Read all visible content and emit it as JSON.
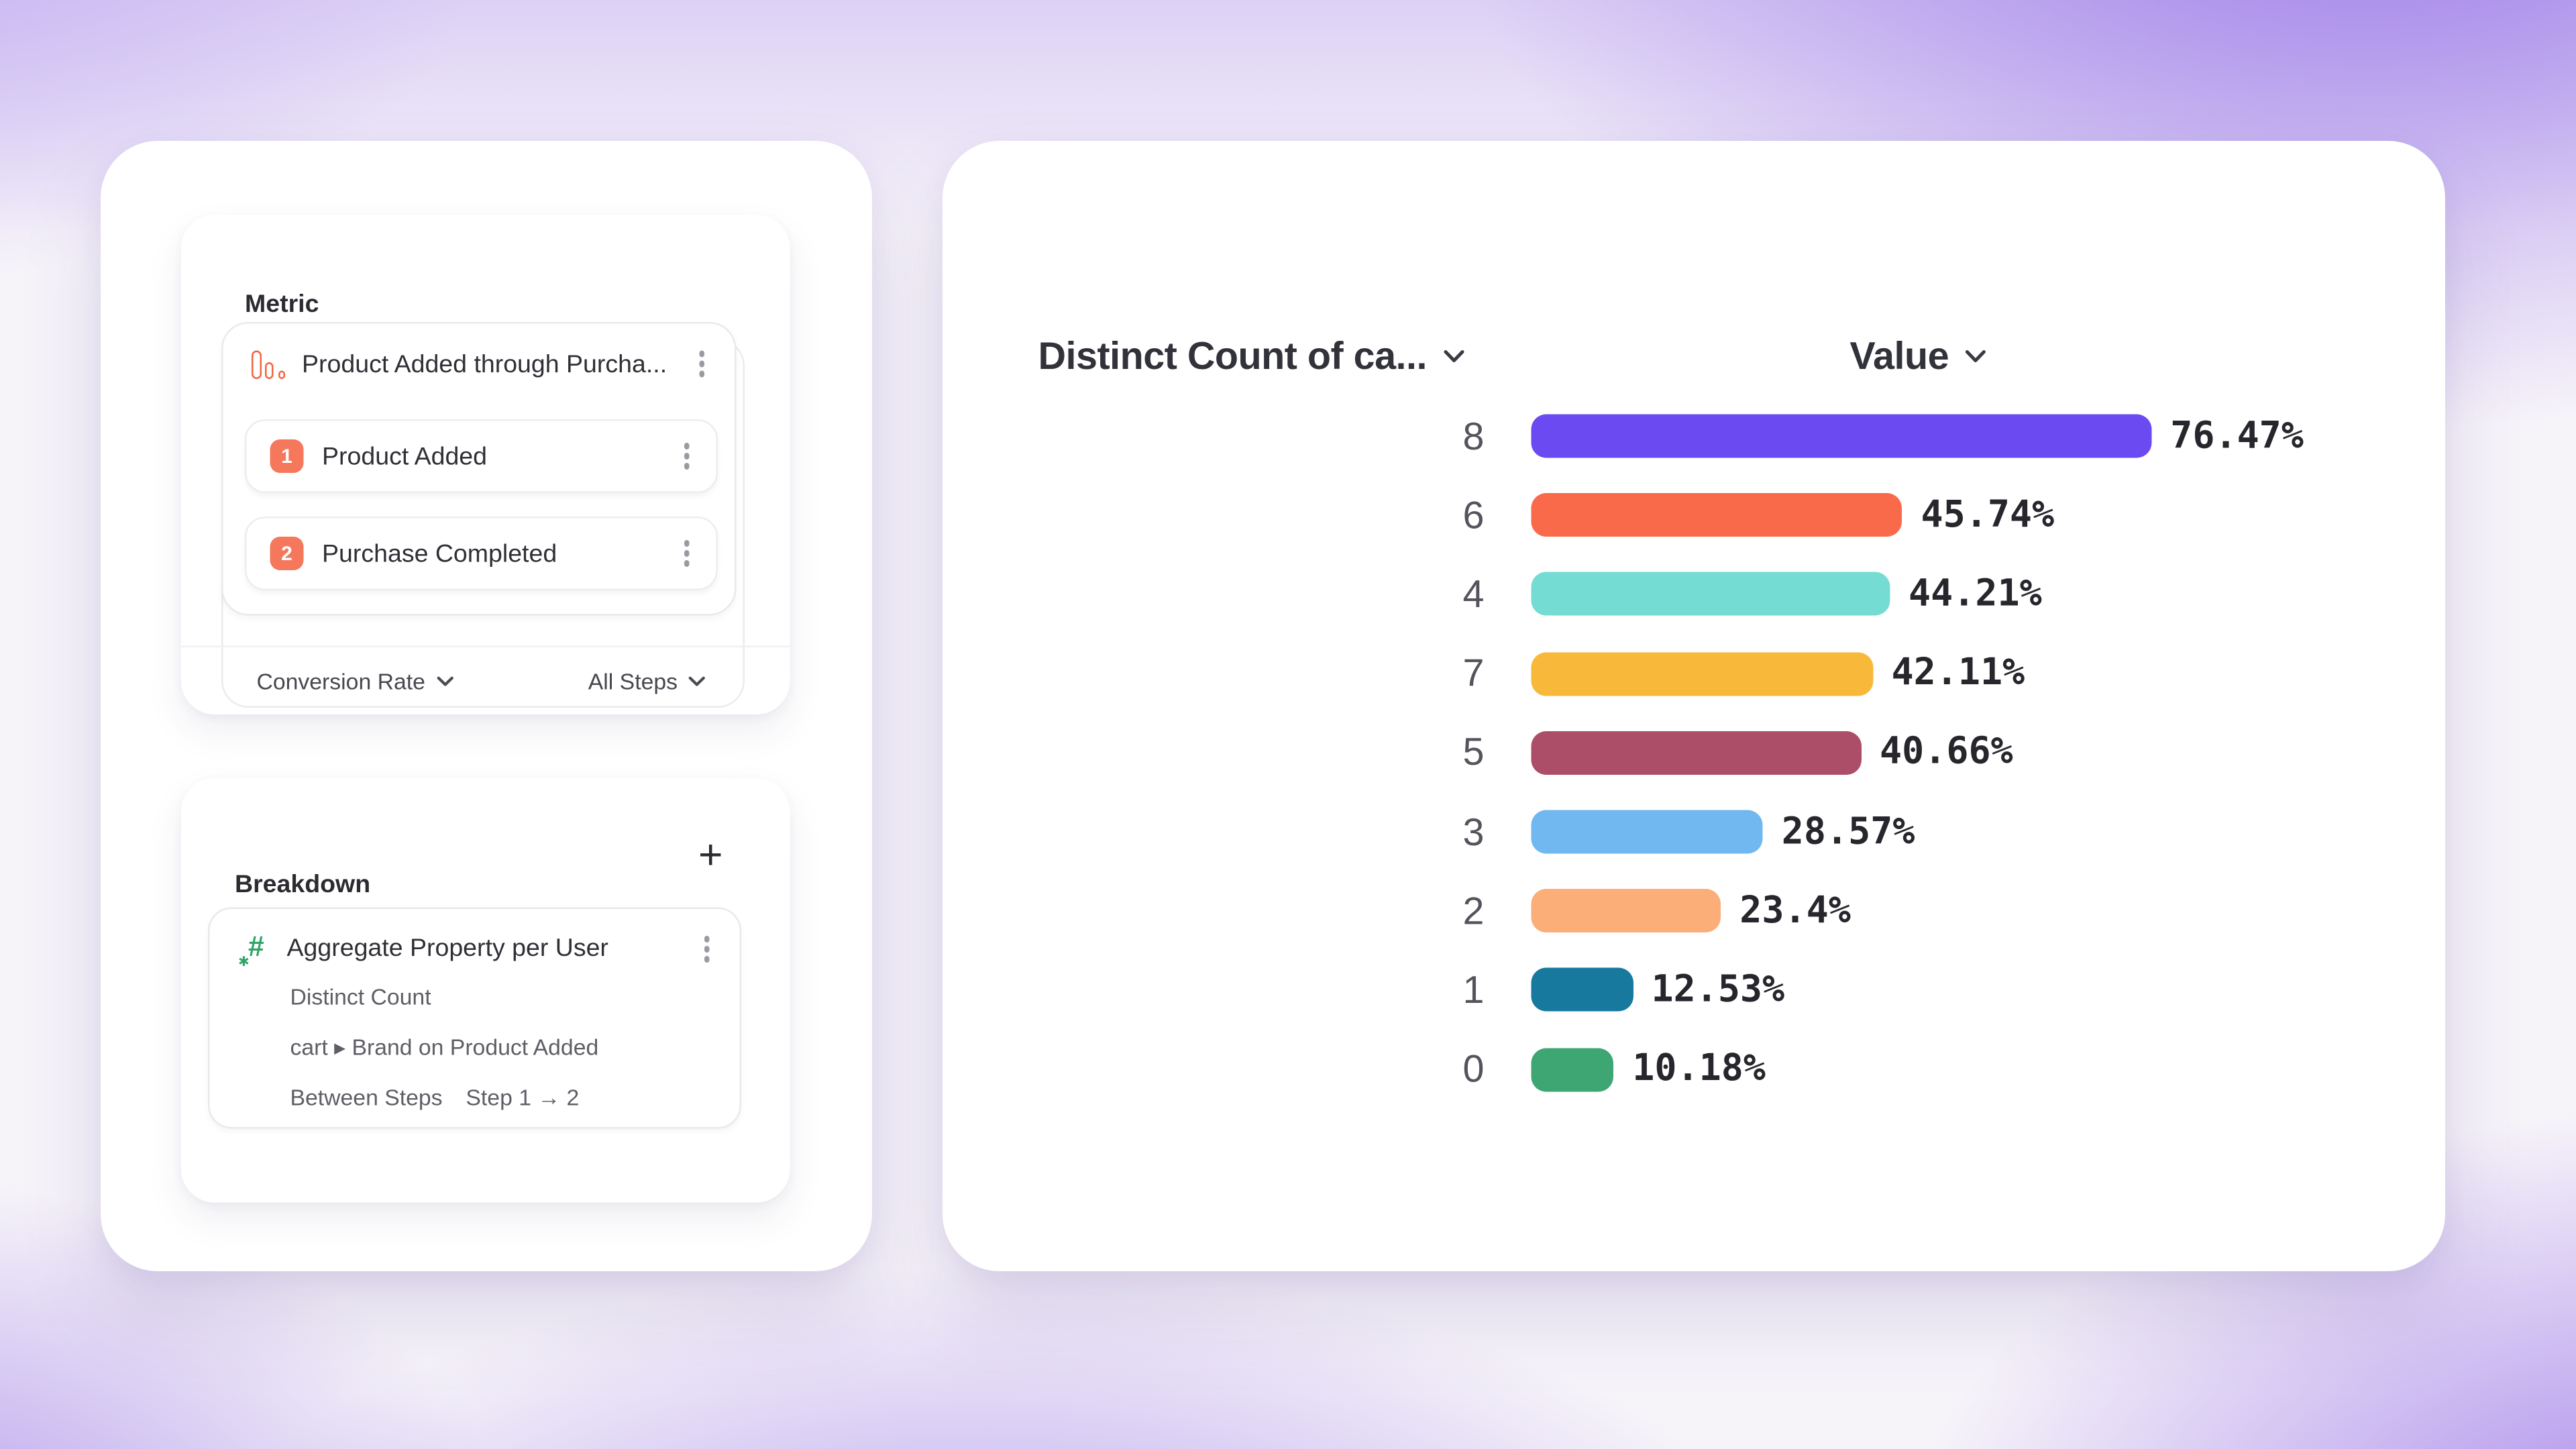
{
  "left_panel": {
    "metric_module": {
      "title": "Metric",
      "event_row": {
        "icon": "funnel-metric-icon",
        "label": "Product Added through Purcha..."
      },
      "steps": [
        {
          "number": "1",
          "label": "Product Added"
        },
        {
          "number": "2",
          "label": "Purchase Completed"
        }
      ],
      "footer": {
        "conversion_dropdown": "Conversion Rate",
        "steps_dropdown": "All Steps"
      }
    },
    "breakdown_module": {
      "title": "Breakdown",
      "add_button": "+",
      "property_card": {
        "icon": "property-hash-icon",
        "title": "Aggregate Property per User",
        "aggregation": "Distinct Count",
        "property_path": "cart ▸ Brand on Product Added",
        "scope_label": "Between Steps",
        "scope_value": "Step 1 → 2"
      }
    }
  },
  "chart_card": {
    "group_header": "Distinct Count of ca...",
    "value_header": "Value"
  },
  "chart_data": {
    "type": "bar",
    "orientation": "horizontal",
    "title": "",
    "x_header": "Distinct Count of ca...",
    "value_header": "Value",
    "categories": [
      "8",
      "6",
      "4",
      "7",
      "5",
      "3",
      "2",
      "1",
      "0"
    ],
    "values": [
      76.47,
      45.74,
      44.21,
      42.11,
      40.66,
      28.57,
      23.4,
      12.53,
      10.18
    ],
    "labels": [
      "76.47%",
      "45.74%",
      "44.21%",
      "42.11%",
      "40.66%",
      "28.57%",
      "23.4%",
      "12.53%",
      "10.18%"
    ],
    "colors": [
      "#6B4AF2",
      "#F96A4B",
      "#74DCD2",
      "#F8B93B",
      "#AC4E68",
      "#70B8EF",
      "#FBAE78",
      "#17799E",
      "#3EA673"
    ],
    "xlim": [
      0,
      100
    ],
    "grid": false,
    "legend": "none",
    "value_label_style": "bold-mono",
    "accent_colors": {
      "step_badge": "#F5785C",
      "metric_icon": "#F5623C",
      "property_icon": "#30A468"
    }
  }
}
